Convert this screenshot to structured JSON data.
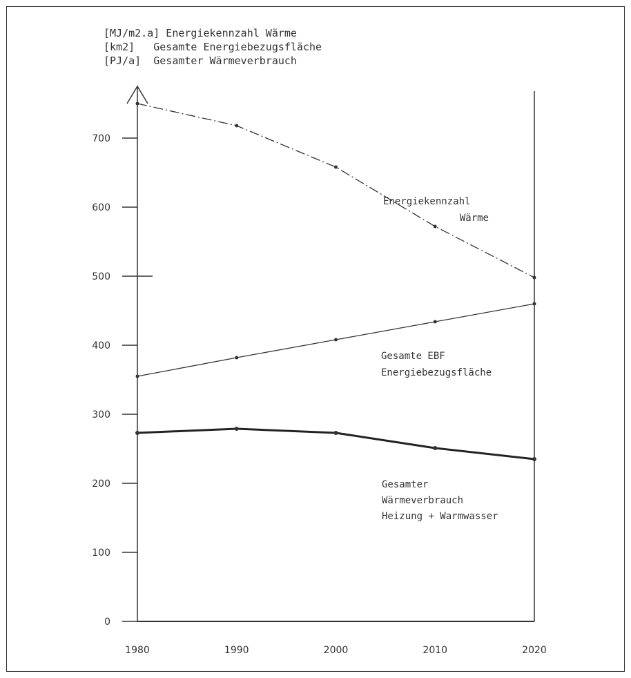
{
  "legend": [
    "[MJ/m2.a] Energiekennzahl Wärme",
    "[km2]   Gesamte Energiebezugsfläche",
    "[PJ/a]  Gesamter Wärmeverbrauch"
  ],
  "chart_data": {
    "type": "line",
    "x": [
      1980,
      1990,
      2000,
      2010,
      2020
    ],
    "xlim": [
      1980,
      2020
    ],
    "ylim": [
      0,
      800
    ],
    "yticks": [
      0,
      100,
      200,
      300,
      400,
      500,
      600,
      700
    ],
    "xticks": [
      1980,
      1990,
      2000,
      2010,
      2020
    ],
    "title": "",
    "xlabel": "",
    "ylabel": "",
    "grid": false,
    "series": [
      {
        "label_lines": [
          "Energiekennzahl",
          "Wärme"
        ],
        "unit": "[MJ/m2.a]",
        "style": "dash-dot",
        "values": [
          750,
          718,
          658,
          572,
          498
        ]
      },
      {
        "label_lines": [
          "Gesamte EBF",
          "Energiebezugsfläche"
        ],
        "unit": "[km2]",
        "style": "solid-thin",
        "values": [
          355,
          382,
          408,
          434,
          460
        ]
      },
      {
        "label_lines": [
          "Gesamter",
          "Wärmeverbrauch",
          "Heizung + Warmwasser"
        ],
        "unit": "[PJ/a]",
        "style": "solid-thick",
        "values": [
          273,
          279,
          273,
          251,
          235
        ]
      }
    ]
  }
}
